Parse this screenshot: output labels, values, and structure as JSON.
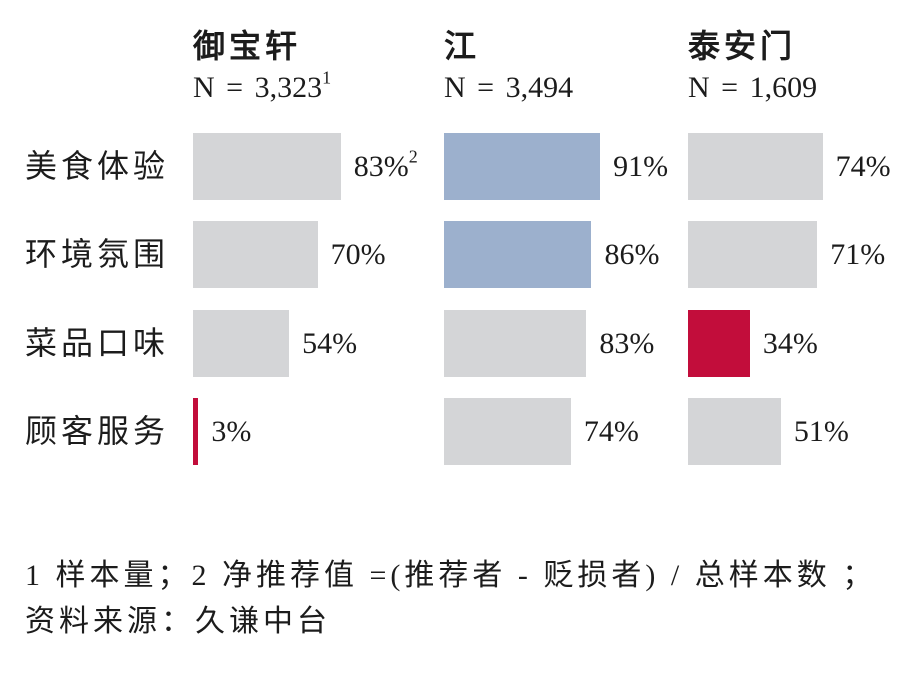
{
  "chart_data": {
    "type": "bar",
    "orientation": "horizontal",
    "grid": false,
    "xlim": [
      0,
      100
    ],
    "categories": [
      "美食体验",
      "环境氛围",
      "菜品口味",
      "顾客服务"
    ],
    "series": [
      {
        "name": "御宝轩",
        "sample_label": "N = 3,323",
        "sample_note": "1",
        "values": [
          83,
          70,
          54,
          3
        ],
        "value_labels": [
          "83%",
          "70%",
          "54%",
          "3%"
        ],
        "value_notes": [
          "2",
          "",
          "",
          ""
        ],
        "bar_colors": [
          "gray",
          "gray",
          "gray",
          "red"
        ]
      },
      {
        "name": "江",
        "sample_label": "N = 3,494",
        "sample_note": "",
        "values": [
          91,
          86,
          83,
          74
        ],
        "value_labels": [
          "91%",
          "86%",
          "83%",
          "74%"
        ],
        "value_notes": [
          "",
          "",
          "",
          ""
        ],
        "bar_colors": [
          "blue",
          "blue",
          "gray",
          "gray"
        ]
      },
      {
        "name": "泰安门",
        "sample_label": "N = 1,609",
        "sample_note": "",
        "values": [
          74,
          71,
          34,
          51
        ],
        "value_labels": [
          "74%",
          "71%",
          "34%",
          "51%"
        ],
        "value_notes": [
          "",
          "",
          "",
          ""
        ],
        "bar_colors": [
          "gray",
          "gray",
          "red",
          "gray"
        ]
      }
    ]
  },
  "colors": {
    "gray": "#d4d5d7",
    "blue": "#9cb0cd",
    "red": "#c20d3b",
    "text": "#1c1c1c"
  },
  "footnotes": [
    "1 样本量；2 净推荐值 =(推荐者 - 贬损者) / 总样本数 ；",
    "资料来源：久谦中台"
  ]
}
